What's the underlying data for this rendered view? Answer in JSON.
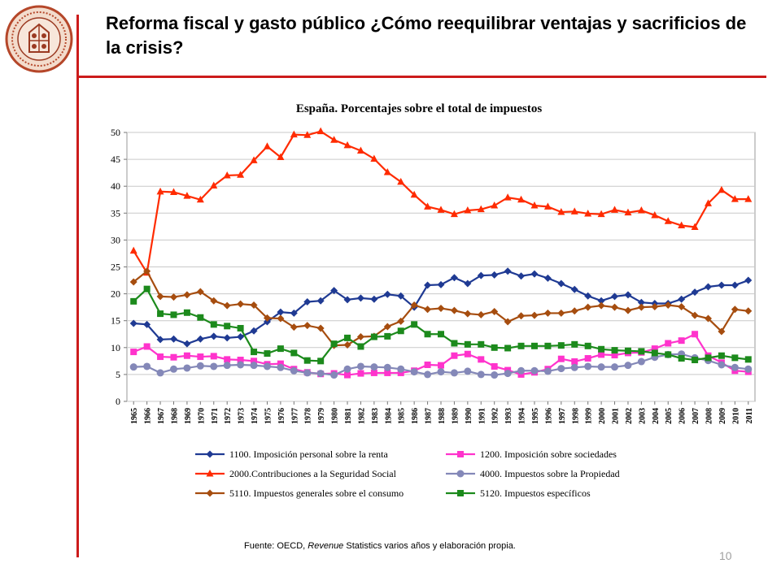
{
  "slide": {
    "title": "Reforma fiscal y gasto público ¿Cómo reequilibrar ventajas y sacrificios de la crisis?",
    "source_prefix": "Fuente: OECD, ",
    "source_italic": "Revenue",
    "source_suffix": " Statistics varios años y elaboración propia.",
    "page_number": "10",
    "accent_color": "#cc1b1b",
    "logo_icon": "university-seal-icon"
  },
  "chart_data": {
    "type": "line",
    "title": "España. Porcentajes sobre el total de impuestos",
    "xlabel": "",
    "ylabel": "",
    "ylim": [
      0,
      50
    ],
    "yticks": [
      0,
      5,
      10,
      15,
      20,
      25,
      30,
      35,
      40,
      45,
      50
    ],
    "grid": true,
    "legend_position": "bottom",
    "categories": [
      "1965",
      "1966",
      "1967",
      "1968",
      "1969",
      "1970",
      "1971",
      "1972",
      "1973",
      "1974",
      "1975",
      "1976",
      "1977",
      "1978",
      "1979",
      "1980",
      "1981",
      "1982",
      "1983",
      "1984",
      "1985",
      "1986",
      "1987",
      "1988",
      "1989",
      "1990",
      "1991",
      "1992",
      "1993",
      "1994",
      "1995",
      "1996",
      "1997",
      "1998",
      "1999",
      "2000",
      "2001",
      "2002",
      "2003",
      "2004",
      "2005",
      "2006",
      "2007",
      "2008",
      "2009",
      "2010",
      "2011"
    ],
    "series": [
      {
        "name": "1100. Imposición personal sobre la renta",
        "color": "#1f3a93",
        "marker": "diamond",
        "values": [
          14.5,
          14.3,
          11.5,
          11.6,
          10.7,
          11.6,
          12.1,
          11.8,
          12.0,
          13.1,
          14.8,
          16.6,
          16.4,
          18.5,
          18.7,
          20.6,
          18.9,
          19.2,
          19.0,
          19.9,
          19.6,
          17.5,
          21.6,
          21.7,
          23.0,
          21.9,
          23.4,
          23.5,
          24.2,
          23.3,
          23.7,
          22.9,
          21.9,
          20.8,
          19.6,
          18.7,
          19.5,
          19.8,
          18.4,
          18.2,
          18.2,
          19.0,
          20.3,
          21.3,
          21.6,
          21.6,
          22.5
        ]
      },
      {
        "name": "1200. Imposición sobre sociedades",
        "color": "#ff33cc",
        "marker": "square",
        "values": [
          9.2,
          10.2,
          8.3,
          8.2,
          8.5,
          8.3,
          8.4,
          7.8,
          7.7,
          7.5,
          6.9,
          7.0,
          6.0,
          5.4,
          5.1,
          5.2,
          4.9,
          5.2,
          5.3,
          5.3,
          5.3,
          5.7,
          6.8,
          6.7,
          8.5,
          8.8,
          7.8,
          6.5,
          5.8,
          5.0,
          5.4,
          6.0,
          7.9,
          7.4,
          8.0,
          8.7,
          8.6,
          9.0,
          9.1,
          9.8,
          10.8,
          11.3,
          12.5,
          8.5,
          7.2,
          5.7,
          5.5
        ]
      },
      {
        "name": "2000.Contribuciones a la Seguridad Social",
        "color": "#ff2b00",
        "marker": "triangle",
        "values": [
          28.0,
          23.9,
          39.0,
          38.9,
          38.2,
          37.5,
          40.1,
          42.0,
          42.1,
          44.8,
          47.4,
          45.4,
          49.6,
          49.5,
          50.2,
          48.6,
          47.6,
          46.6,
          45.1,
          42.6,
          40.8,
          38.4,
          36.2,
          35.6,
          34.8,
          35.5,
          35.7,
          36.4,
          37.9,
          37.5,
          36.4,
          36.2,
          35.2,
          35.3,
          34.9,
          34.8,
          35.6,
          35.1,
          35.5,
          34.6,
          33.5,
          32.7,
          32.4,
          36.8,
          39.3,
          37.6,
          37.6
        ]
      },
      {
        "name": "4000. Impuestos sobre la Propiedad",
        "color": "#8488b8",
        "marker": "circle",
        "values": [
          6.4,
          6.5,
          5.3,
          6.0,
          6.2,
          6.6,
          6.5,
          6.7,
          6.8,
          6.7,
          6.5,
          6.3,
          5.7,
          5.3,
          5.2,
          4.9,
          6.0,
          6.5,
          6.4,
          6.3,
          6.0,
          5.5,
          5.0,
          5.5,
          5.3,
          5.6,
          5.0,
          4.9,
          5.2,
          5.7,
          5.7,
          5.6,
          6.1,
          6.3,
          6.5,
          6.4,
          6.4,
          6.7,
          7.4,
          8.2,
          8.7,
          8.8,
          8.1,
          7.6,
          6.8,
          6.3,
          6.0
        ]
      },
      {
        "name": "5110. Impuestos generales sobre el consumo",
        "color": "#a64d0f",
        "marker": "diamond",
        "values": [
          22.2,
          24.2,
          19.5,
          19.4,
          19.8,
          20.4,
          18.7,
          17.8,
          18.1,
          17.9,
          15.5,
          15.4,
          13.8,
          14.1,
          13.6,
          10.4,
          10.5,
          12.0,
          12.1,
          13.9,
          14.9,
          17.9,
          17.1,
          17.3,
          16.9,
          16.3,
          16.1,
          16.7,
          14.8,
          15.9,
          16.0,
          16.4,
          16.4,
          16.8,
          17.5,
          17.8,
          17.5,
          16.9,
          17.5,
          17.6,
          17.9,
          17.6,
          16.0,
          15.4,
          13.0,
          17.1,
          16.8
        ]
      },
      {
        "name": "5120. Impuestos específicos",
        "color": "#1c8a1c",
        "marker": "square",
        "values": [
          18.6,
          20.9,
          16.3,
          16.1,
          16.5,
          15.6,
          14.3,
          14.0,
          13.6,
          9.2,
          8.9,
          9.8,
          9.0,
          7.6,
          7.5,
          10.7,
          11.8,
          10.2,
          12.0,
          12.1,
          13.1,
          14.3,
          12.5,
          12.5,
          10.8,
          10.6,
          10.6,
          10.0,
          9.9,
          10.3,
          10.3,
          10.3,
          10.4,
          10.6,
          10.3,
          9.7,
          9.5,
          9.4,
          9.3,
          9.0,
          8.7,
          8.0,
          7.7,
          8.1,
          8.5,
          8.1,
          7.8
        ]
      }
    ]
  }
}
